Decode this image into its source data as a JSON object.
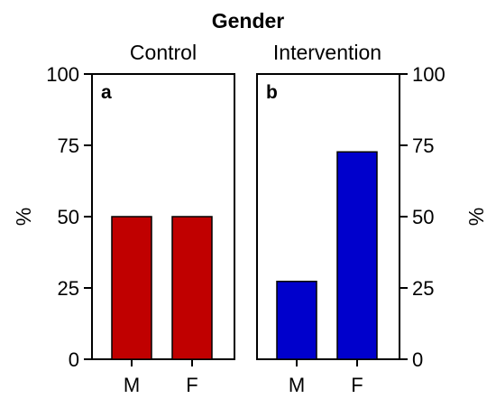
{
  "chart_data": [
    {
      "type": "bar",
      "title": "Gender",
      "subtitle": "Control",
      "panel_label": "a",
      "ylabel": "%",
      "ylim": [
        0,
        100
      ],
      "yticks": [
        "0",
        "25",
        "50",
        "75",
        "100"
      ],
      "categories": [
        "M",
        "F"
      ],
      "values": [
        50,
        50
      ],
      "color": "#C00000",
      "axis_side": "left"
    },
    {
      "type": "bar",
      "subtitle": "Intervention",
      "panel_label": "b",
      "ylabel": "%",
      "ylim": [
        0,
        100
      ],
      "yticks": [
        "0",
        "25",
        "50",
        "75",
        "100"
      ],
      "categories": [
        "M",
        "F"
      ],
      "values": [
        27.3,
        72.7
      ],
      "color": "#0000CC",
      "axis_side": "right"
    }
  ]
}
